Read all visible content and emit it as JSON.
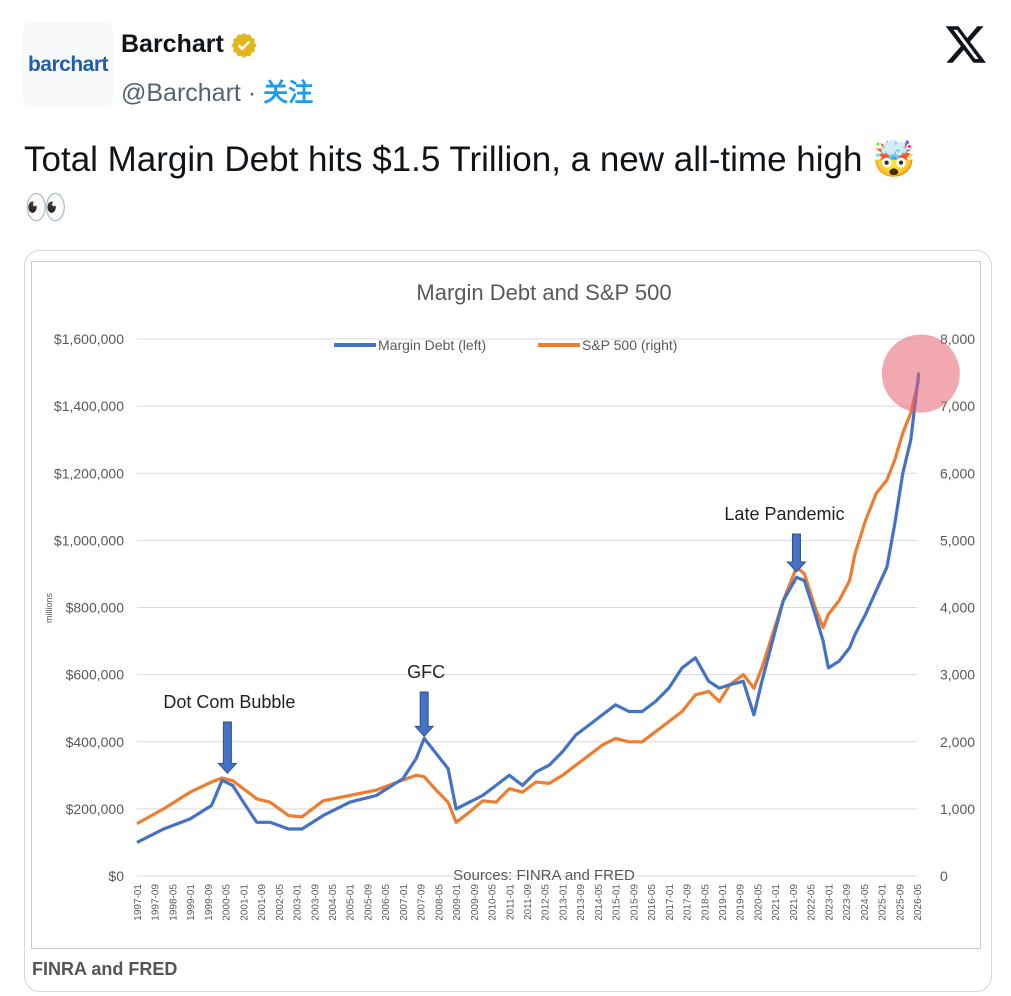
{
  "tweet": {
    "author_name": "Barchart",
    "handle": "@Barchart",
    "separator": "·",
    "follow_label": "关注",
    "avatar_text": "barchart",
    "text": "Total Margin Debt hits $1.5 Trillion, a new all-time high 🤯",
    "text_line2": "👀",
    "media_caption": "FINRA and FRED"
  },
  "colors": {
    "margin_debt": "#4472c4",
    "sp500": "#ed7d31",
    "highlight": "#e8616f",
    "verified_badge": "#e2b719",
    "link": "#1d9bf0"
  },
  "chart_data": {
    "type": "line",
    "title": "Margin Debt and S&P 500",
    "ylabel_left": "millions",
    "source_note": "Sources: FINRA and FRED",
    "y_left_ticks": [
      "$1,600,000",
      "$1,400,000",
      "$1,200,000",
      "$1,000,000",
      "$800,000",
      "$600,000",
      "$400,000",
      "$200,000",
      "$0"
    ],
    "y_right_ticks": [
      "8,000",
      "7,000",
      "6,000",
      "5,000",
      "4,000",
      "3,000",
      "2,000",
      "1,000",
      "0"
    ],
    "ylim_left": [
      0,
      1600000
    ],
    "ylim_right": [
      0,
      8000
    ],
    "x_ticks": [
      "1997-01",
      "1997-09",
      "1998-05",
      "1999-01",
      "1999-09",
      "2000-05",
      "2001-01",
      "2001-09",
      "2002-05",
      "2003-01",
      "2003-09",
      "2004-05",
      "2005-01",
      "2005-09",
      "2006-05",
      "2007-01",
      "2007-09",
      "2008-05",
      "2009-01",
      "2009-09",
      "2010-05",
      "2011-01",
      "2011-09",
      "2012-05",
      "2013-01",
      "2013-09",
      "2014-05",
      "2015-01",
      "2015-09",
      "2016-05",
      "2017-01",
      "2017-09",
      "2018-05",
      "2019-01",
      "2019-09",
      "2020-05",
      "2021-01",
      "2021-09",
      "2022-05",
      "2023-01",
      "2023-09",
      "2024-05",
      "2025-01",
      "2025-09",
      "2026-05"
    ],
    "grid": true,
    "legend_position": "top",
    "series": [
      {
        "name": "Margin Debt (left)",
        "axis": "left",
        "x": [
          1997.0,
          1998.0,
          1999.0,
          1999.8,
          2000.2,
          2000.6,
          2001.0,
          2001.5,
          2002.0,
          2002.7,
          2003.2,
          2004.0,
          2005.0,
          2006.0,
          2007.0,
          2007.5,
          2007.8,
          2008.2,
          2008.7,
          2009.0,
          2009.5,
          2010.0,
          2010.5,
          2011.0,
          2011.5,
          2012.0,
          2012.5,
          2013.0,
          2013.5,
          2014.0,
          2014.5,
          2015.0,
          2015.5,
          2016.0,
          2016.5,
          2017.0,
          2017.5,
          2018.0,
          2018.5,
          2018.9,
          2019.3,
          2019.8,
          2020.2,
          2020.5,
          2020.9,
          2021.3,
          2021.8,
          2022.1,
          2022.5,
          2022.8,
          2023.0,
          2023.4,
          2023.8,
          2024.0,
          2024.4,
          2024.8,
          2025.2,
          2025.5,
          2025.8,
          2026.1,
          2026.4
        ],
        "y": [
          100000,
          140000,
          170000,
          210000,
          285000,
          270000,
          220000,
          160000,
          160000,
          140000,
          140000,
          180000,
          220000,
          240000,
          290000,
          350000,
          410000,
          370000,
          320000,
          200000,
          220000,
          240000,
          270000,
          300000,
          270000,
          310000,
          330000,
          370000,
          420000,
          450000,
          480000,
          510000,
          490000,
          490000,
          520000,
          560000,
          620000,
          650000,
          580000,
          560000,
          570000,
          580000,
          480000,
          580000,
          700000,
          820000,
          890000,
          880000,
          780000,
          700000,
          620000,
          640000,
          680000,
          720000,
          780000,
          850000,
          920000,
          1050000,
          1200000,
          1300000,
          1500000
        ]
      },
      {
        "name": "S&P 500 (right)",
        "axis": "right",
        "x": [
          1997.0,
          1998.0,
          1999.0,
          1999.8,
          2000.2,
          2000.6,
          2001.0,
          2001.5,
          2002.0,
          2002.7,
          2003.2,
          2004.0,
          2005.0,
          2006.0,
          2007.0,
          2007.5,
          2007.8,
          2008.2,
          2008.7,
          2009.0,
          2009.5,
          2010.0,
          2010.5,
          2011.0,
          2011.5,
          2012.0,
          2012.5,
          2013.0,
          2013.5,
          2014.0,
          2014.5,
          2015.0,
          2015.5,
          2016.0,
          2016.5,
          2017.0,
          2017.5,
          2018.0,
          2018.5,
          2018.9,
          2019.3,
          2019.8,
          2020.2,
          2020.5,
          2020.9,
          2021.3,
          2021.8,
          2022.1,
          2022.5,
          2022.8,
          2023.0,
          2023.4,
          2023.8,
          2024.0,
          2024.4,
          2024.8,
          2025.2,
          2025.5,
          2025.8,
          2026.1,
          2026.4
        ],
        "y": [
          780,
          1000,
          1250,
          1400,
          1460,
          1420,
          1300,
          1150,
          1100,
          900,
          880,
          1120,
          1200,
          1280,
          1430,
          1500,
          1480,
          1300,
          1100,
          800,
          950,
          1120,
          1100,
          1300,
          1250,
          1400,
          1380,
          1500,
          1650,
          1800,
          1950,
          2050,
          2000,
          2000,
          2150,
          2300,
          2450,
          2700,
          2750,
          2600,
          2850,
          3000,
          2800,
          3100,
          3600,
          4100,
          4600,
          4500,
          4000,
          3700,
          3900,
          4100,
          4400,
          4800,
          5300,
          5700,
          5900,
          6200,
          6600,
          6900,
          7400
        ]
      }
    ],
    "annotations": [
      "Dot Com Bubble",
      "GFC",
      "Late Pandemic"
    ]
  }
}
